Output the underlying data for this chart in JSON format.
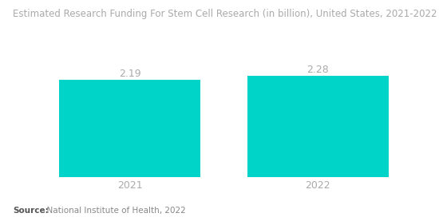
{
  "title": "Estimated Research Funding For Stem Cell Research (in billion), United States, 2021-2022",
  "categories": [
    "2021",
    "2022"
  ],
  "values": [
    2.19,
    2.28
  ],
  "bar_color": "#00D4C8",
  "value_labels": [
    "2.19",
    "2.28"
  ],
  "background_color": "#ffffff",
  "title_fontsize": 8.5,
  "title_color": "#aaaaaa",
  "value_fontsize": 9,
  "value_color": "#aaaaaa",
  "xtick_fontsize": 9,
  "xtick_color": "#aaaaaa",
  "source_label_text": "Source:",
  "source_rest_text": "  National Institute of Health, 2022",
  "source_fontsize": 7.5,
  "ylim": [
    0,
    2.8
  ],
  "bar_width": 0.75,
  "xlim": [
    -0.55,
    1.55
  ]
}
